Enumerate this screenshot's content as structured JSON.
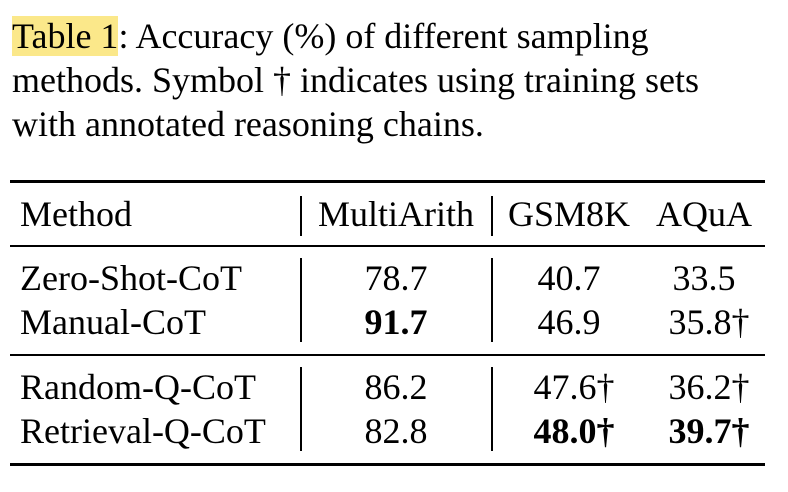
{
  "caption": {
    "label": "Table 1",
    "line1_rest": ":  Accuracy (%) of different sampling",
    "line2": "methods. Symbol † indicates using training sets",
    "line3": "with annotated reasoning chains."
  },
  "table": {
    "headers": [
      "Method",
      "MultiArith",
      "GSM8K",
      "AQuA"
    ],
    "rows": [
      {
        "method": "Zero-Shot-CoT",
        "multiarith": "78.7",
        "gsm8k": "40.7",
        "aqua": "33.5"
      },
      {
        "method": "Manual-CoT",
        "multiarith": "91.7",
        "gsm8k": "46.9",
        "aqua": "35.8†"
      },
      {
        "method": "Random-Q-CoT",
        "multiarith": "86.2",
        "gsm8k": "47.6†",
        "aqua": "36.2†"
      },
      {
        "method": "Retrieval-Q-CoT",
        "multiarith": "82.8",
        "gsm8k": "48.0†",
        "aqua": "39.7†"
      }
    ]
  }
}
